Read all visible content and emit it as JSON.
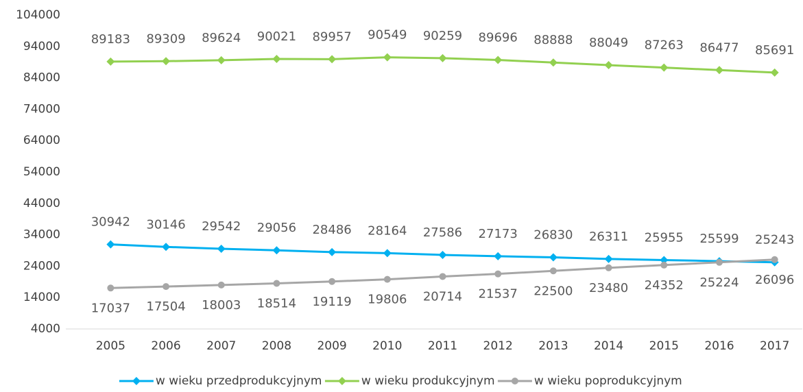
{
  "chart_data": {
    "type": "line",
    "categories": [
      "2005",
      "2006",
      "2007",
      "2008",
      "2009",
      "2010",
      "2011",
      "2012",
      "2013",
      "2014",
      "2015",
      "2016",
      "2017"
    ],
    "series": [
      {
        "name": "w wieku przedprodukcyjnym",
        "color": "#00b0f0",
        "marker": "diamond",
        "label_position": "above",
        "values": [
          30942,
          30146,
          29542,
          29056,
          28486,
          28164,
          27586,
          27173,
          26830,
          26311,
          25955,
          25599,
          25243
        ]
      },
      {
        "name": "w wieku produkcyjnym",
        "color": "#92d050",
        "marker": "diamond",
        "label_position": "above",
        "values": [
          89183,
          89309,
          89624,
          90021,
          89957,
          90549,
          90259,
          89696,
          88888,
          88049,
          87263,
          86477,
          85691
        ]
      },
      {
        "name": "w wieku poprodukcyjnym",
        "color": "#a6a6a6",
        "marker": "circle",
        "label_position": "below",
        "values": [
          17037,
          17504,
          18003,
          18514,
          19119,
          19806,
          20714,
          21537,
          22500,
          23480,
          24352,
          25224,
          26096
        ]
      }
    ],
    "ylim": [
      4000,
      104000
    ],
    "yticks": [
      4000,
      14000,
      24000,
      34000,
      44000,
      54000,
      64000,
      74000,
      84000,
      94000,
      104000
    ],
    "grid": false,
    "legend": "bottom"
  }
}
